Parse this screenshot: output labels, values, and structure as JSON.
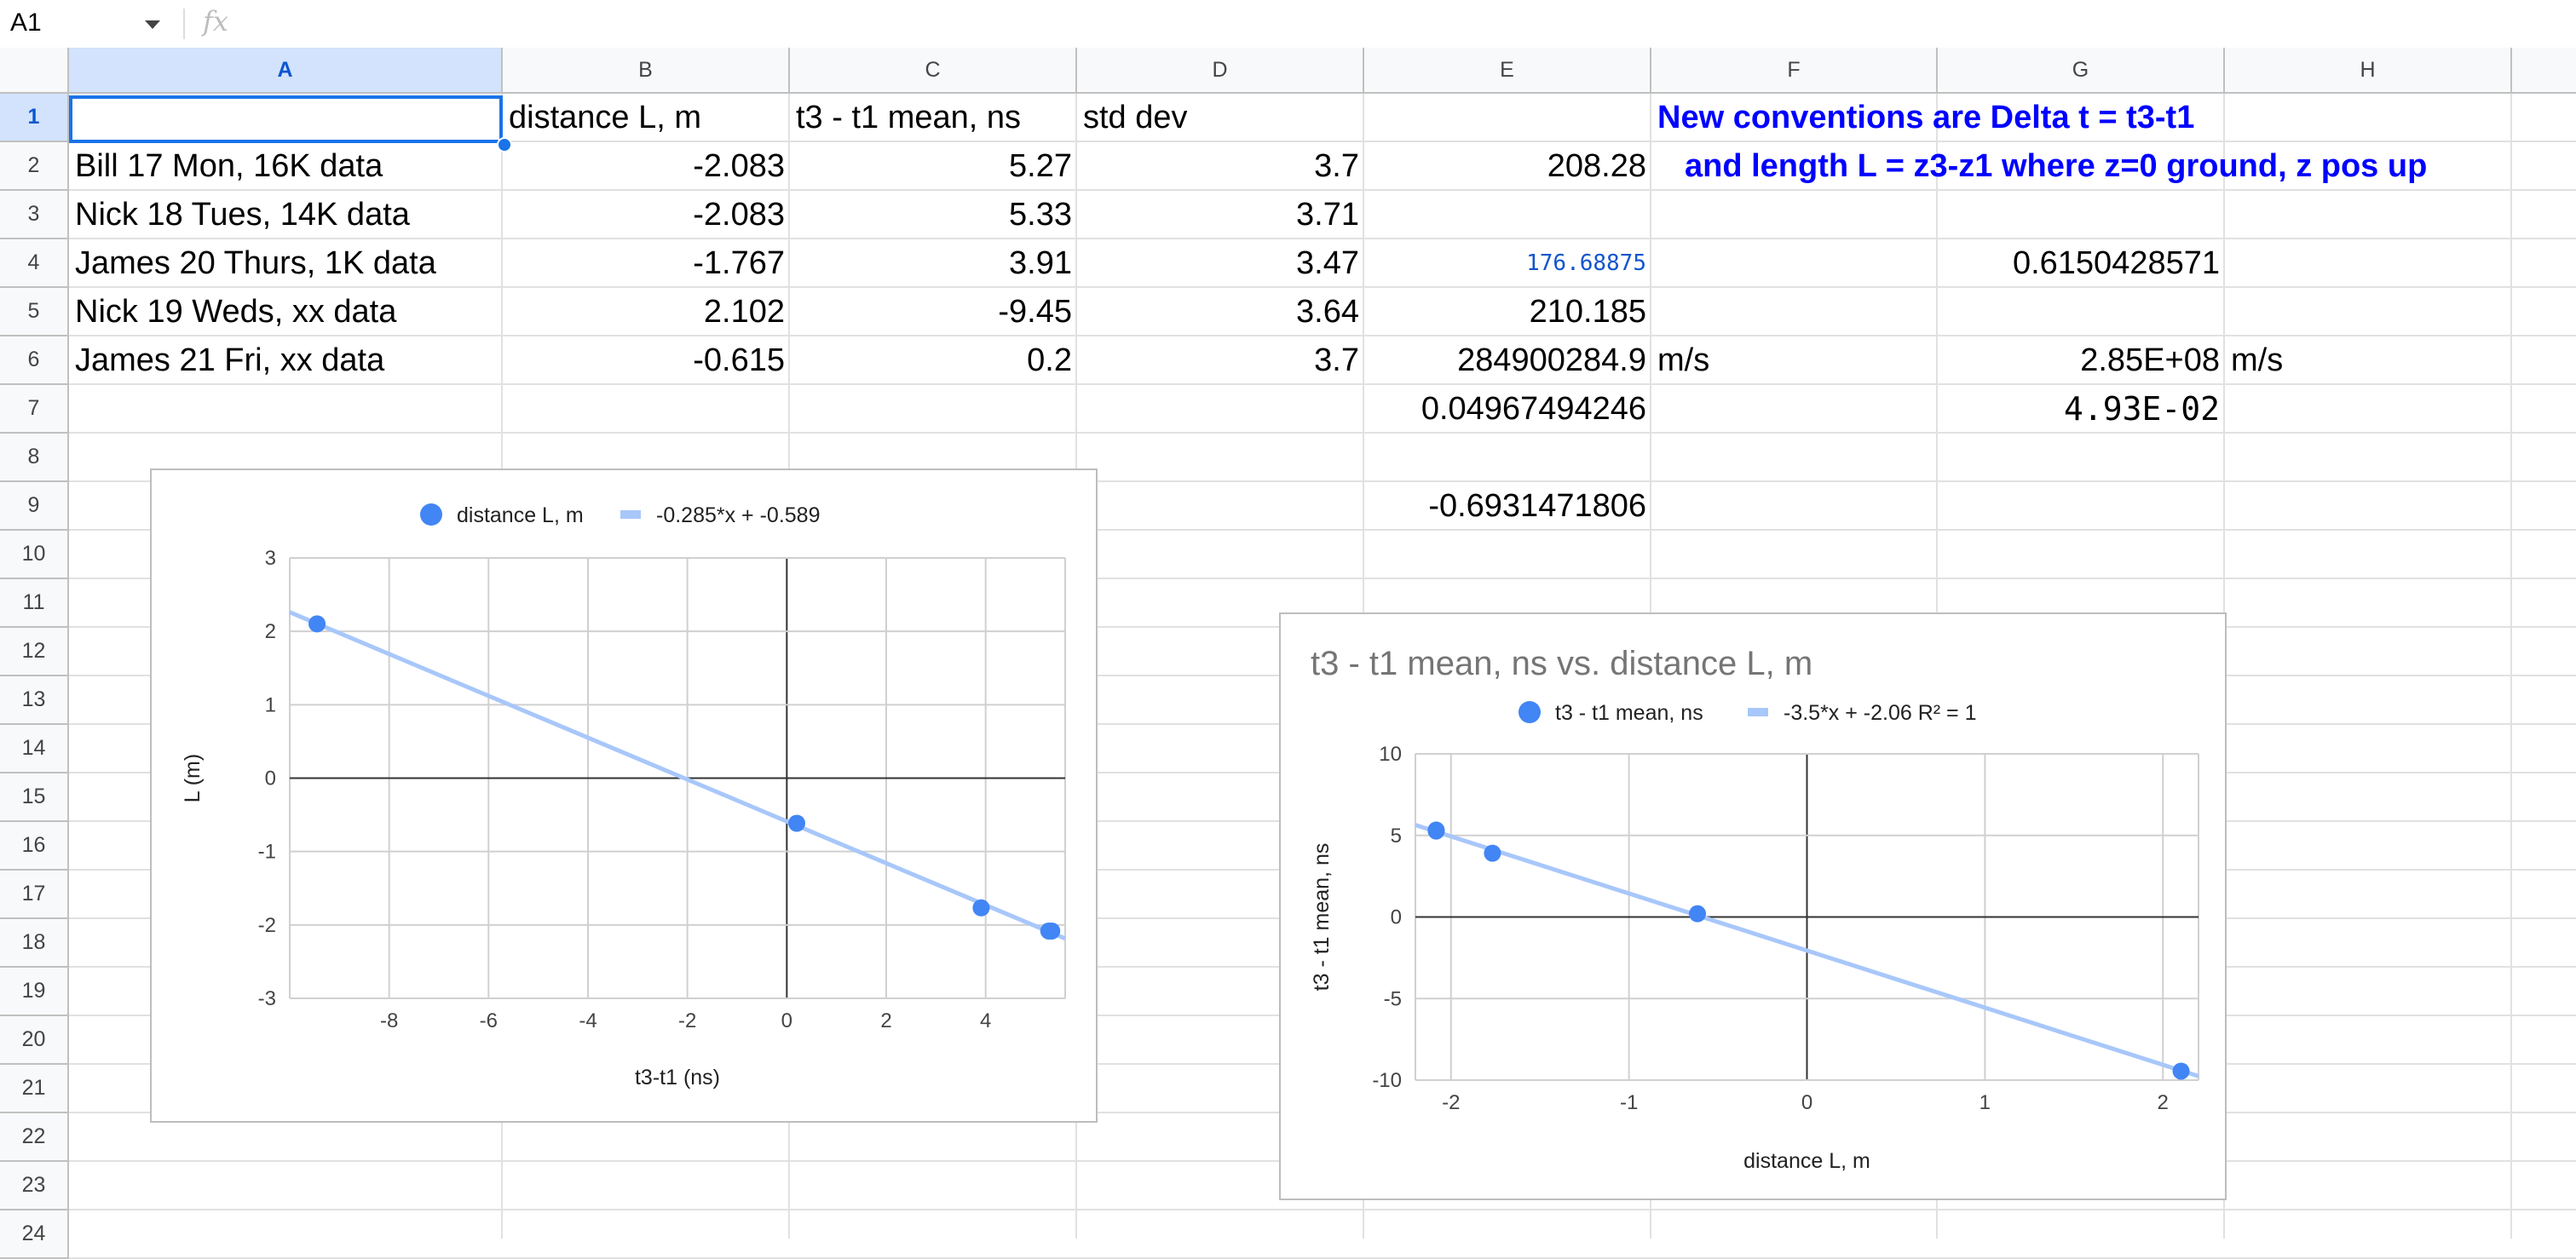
{
  "formula_bar": {
    "name_box": "A1",
    "fx_icon": "fx-icon",
    "formula": ""
  },
  "columns": [
    "A",
    "B",
    "C",
    "D",
    "E",
    "F",
    "G",
    "H"
  ],
  "rows": [
    "1",
    "2",
    "3",
    "4",
    "5",
    "6",
    "7",
    "8",
    "9",
    "10",
    "11",
    "12",
    "13",
    "14",
    "15",
    "16",
    "17",
    "18",
    "19",
    "20",
    "21",
    "22",
    "23",
    "24"
  ],
  "cells": {
    "B1": "distance L, m",
    "C1": "t3 - t1  mean, ns",
    "D1": "std dev",
    "F1": "New conventions are Delta t = t3-t1",
    "F2": "and length L = z3-z1 where z=0 ground, z pos up",
    "A2": "Bill 17 Mon, 16K data",
    "B2": "-2.083",
    "C2": "5.27",
    "D2": "3.7",
    "E2": "208.28",
    "A3": "Nick 18 Tues, 14K data",
    "B3": "-2.083",
    "C3": "5.33",
    "D3": "3.71",
    "A4": "James 20 Thurs, 1K data",
    "B4": "-1.767",
    "C4": "3.91",
    "D4": "3.47",
    "E4": "176.68875",
    "G4": "0.6150428571",
    "A5": "Nick 19 Weds, xx data",
    "B5": "2.102",
    "C5": "-9.45",
    "D5": "3.64",
    "E5": "210.185",
    "A6": "James 21 Fri, xx data",
    "B6": "-0.615",
    "C6": "0.2",
    "D6": "3.7",
    "E6": "284900284.9",
    "F6": "m/s",
    "G6": "2.85E+08",
    "H6": "m/s",
    "E7": "0.04967494246",
    "G7": "4.93E-02",
    "E9": "-0.6931471806"
  },
  "chart_data": [
    {
      "type": "scatter",
      "title": "",
      "xlabel": "t3-t1 (ns)",
      "ylabel": "L (m)",
      "xlim": [
        -10,
        5.6
      ],
      "ylim": [
        -3,
        3
      ],
      "xticks": [
        "-8",
        "-6",
        "-4",
        "-2",
        "0",
        "2",
        "4"
      ],
      "yticks": [
        "3",
        "2",
        "1",
        "0",
        "-1",
        "-2",
        "-3"
      ],
      "grid": true,
      "legend_position": "top",
      "series": [
        {
          "name": "distance L, m",
          "color": "#4285f4",
          "x": [
            5.27,
            5.33,
            3.91,
            -9.45,
            0.2
          ],
          "y": [
            -2.083,
            -2.083,
            -1.767,
            2.102,
            -0.615
          ]
        }
      ],
      "trendline": {
        "label": "-0.285*x + -0.589",
        "slope": -0.285,
        "intercept": -0.589,
        "color": "#a8c7fa"
      }
    },
    {
      "type": "scatter",
      "title": "t3 - t1  mean, ns vs. distance L, m",
      "xlabel": "distance L, m",
      "ylabel": "t3 - t1  mean, ns",
      "xlim": [
        -2.2,
        2.2
      ],
      "ylim": [
        -10,
        10
      ],
      "xticks": [
        "-2",
        "-1",
        "0",
        "1",
        "2"
      ],
      "yticks": [
        "10",
        "5",
        "0",
        "-5",
        "-10"
      ],
      "grid": true,
      "legend_position": "top",
      "series": [
        {
          "name": "t3 - t1  mean, ns",
          "color": "#4285f4",
          "x": [
            -2.083,
            -2.083,
            -1.767,
            2.102,
            -0.615
          ],
          "y": [
            5.27,
            5.33,
            3.91,
            -9.45,
            0.2
          ]
        }
      ],
      "trendline": {
        "label": "-3.5*x + -2.06 R² = 1",
        "slope": -3.5,
        "intercept": -2.06,
        "color": "#a8c7fa"
      }
    }
  ]
}
